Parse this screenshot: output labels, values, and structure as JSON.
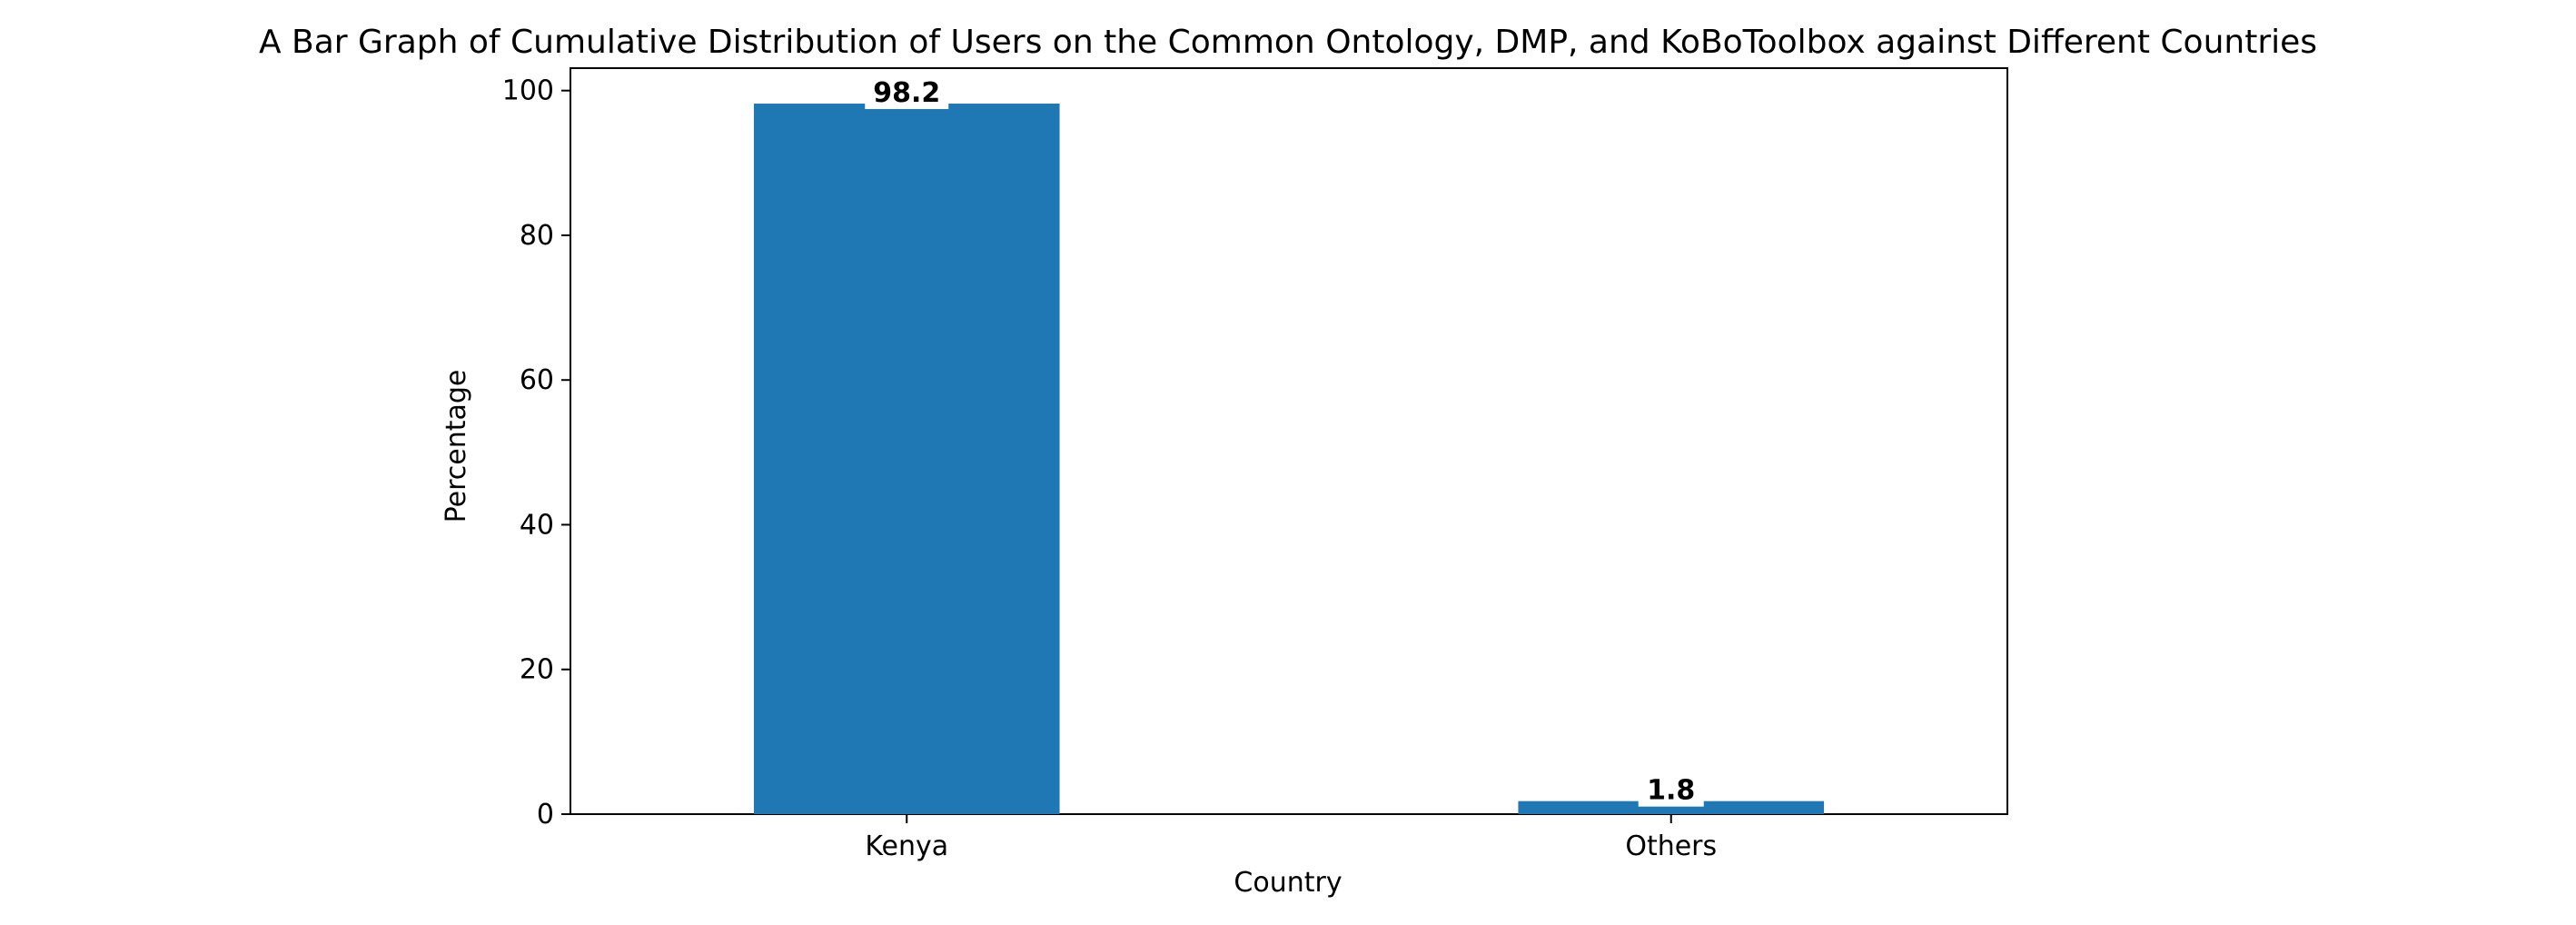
{
  "chart_data": {
    "type": "bar",
    "title": "A Bar Graph of Cumulative Distribution of Users on the Common Ontology, DMP, and KoBoToolbox against Different Countries",
    "xlabel": "Country",
    "ylabel": "Percentage",
    "categories": [
      "Kenya",
      "Others"
    ],
    "values": [
      98.2,
      1.8
    ],
    "data_labels": [
      "98.2",
      "1.8"
    ],
    "ylim": [
      0,
      103.1
    ],
    "yticks": [
      0,
      20,
      40,
      60,
      80,
      100
    ],
    "ytick_labels": [
      "0",
      "20",
      "40",
      "60",
      "80",
      "100"
    ],
    "bar_color": "#1f77b4",
    "grid": false,
    "legend": "none"
  }
}
